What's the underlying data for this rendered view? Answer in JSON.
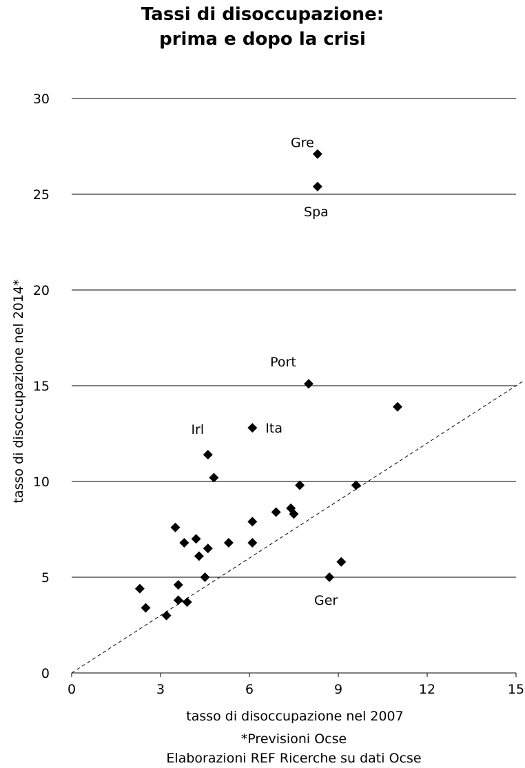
{
  "chart_data": {
    "type": "scatter",
    "title": [
      "Tassi di disoccupazione:",
      "prima e dopo la crisi"
    ],
    "xlabel": "tasso di disoccupazione nel 2007",
    "ylabel": "tasso di disoccupazione nel 2014*",
    "xlim": [
      0,
      15
    ],
    "ylim": [
      0,
      30
    ],
    "xticks": [
      0,
      3,
      6,
      9,
      12,
      15
    ],
    "yticks": [
      0,
      5,
      10,
      15,
      20,
      25,
      30
    ],
    "grid": "horizontal",
    "reference_line": "y = x",
    "points": [
      {
        "x": 8.3,
        "y": 27.1,
        "label": "Gre"
      },
      {
        "x": 8.3,
        "y": 25.4,
        "label": "Spa"
      },
      {
        "x": 8.0,
        "y": 15.1,
        "label": "Port"
      },
      {
        "x": 11.0,
        "y": 13.9
      },
      {
        "x": 6.1,
        "y": 12.8,
        "label": "Ita"
      },
      {
        "x": 4.6,
        "y": 11.4,
        "label": "Irl"
      },
      {
        "x": 4.8,
        "y": 10.2
      },
      {
        "x": 7.7,
        "y": 9.8
      },
      {
        "x": 9.6,
        "y": 9.8
      },
      {
        "x": 6.9,
        "y": 8.4
      },
      {
        "x": 7.4,
        "y": 8.6
      },
      {
        "x": 7.5,
        "y": 8.3
      },
      {
        "x": 6.1,
        "y": 7.9
      },
      {
        "x": 3.5,
        "y": 7.6
      },
      {
        "x": 4.2,
        "y": 7.0
      },
      {
        "x": 3.8,
        "y": 6.8
      },
      {
        "x": 5.3,
        "y": 6.8
      },
      {
        "x": 6.1,
        "y": 6.8
      },
      {
        "x": 4.6,
        "y": 6.5
      },
      {
        "x": 4.3,
        "y": 6.1
      },
      {
        "x": 9.1,
        "y": 5.8
      },
      {
        "x": 8.7,
        "y": 5.0,
        "label": "Ger"
      },
      {
        "x": 4.5,
        "y": 5.0
      },
      {
        "x": 3.6,
        "y": 4.6
      },
      {
        "x": 2.3,
        "y": 4.4
      },
      {
        "x": 3.6,
        "y": 3.8
      },
      {
        "x": 3.9,
        "y": 3.7
      },
      {
        "x": 2.5,
        "y": 3.4
      },
      {
        "x": 3.2,
        "y": 3.0
      }
    ]
  },
  "footnotes": {
    "line1": "*Previsioni Ocse",
    "line2": "Elaborazioni REF Ricerche su dati Ocse"
  }
}
